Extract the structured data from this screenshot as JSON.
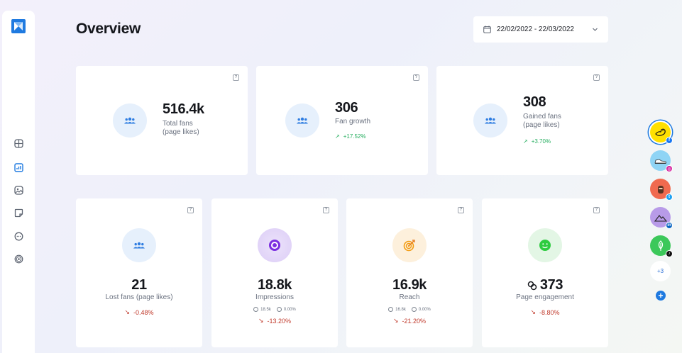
{
  "header": {
    "title": "Overview",
    "date_range": "22/02/2022 - 22/03/2022"
  },
  "sidebar": {
    "logo": "app-logo",
    "items": [
      {
        "icon": "layout-icon"
      },
      {
        "icon": "analytics-icon",
        "active": true
      },
      {
        "icon": "gallery-icon"
      },
      {
        "icon": "sticky-note-icon"
      },
      {
        "icon": "chat-icon"
      },
      {
        "icon": "target-icon"
      }
    ]
  },
  "cards_top": [
    {
      "value": "516.4k",
      "label": "Total fans\n(page likes)",
      "change": ""
    },
    {
      "value": "306",
      "label": "Fan growth",
      "change": "+17.52%"
    },
    {
      "value": "308",
      "label": "Gained fans\n(page likes)",
      "change": "+3.70%"
    }
  ],
  "cards_bottom": [
    {
      "value": "21",
      "label": "Lost fans (page likes)",
      "change": "-0.48%"
    },
    {
      "value": "18.8k",
      "label": "Impressions",
      "mini_a": "18.5k",
      "mini_b": "0.00%",
      "change": "-13.20%"
    },
    {
      "value": "16.9k",
      "label": "Reach",
      "mini_a": "16.8k",
      "mini_b": "0.00%",
      "change": "-21.20%"
    },
    {
      "value": "373",
      "label": "Page engagement",
      "change": "-8.80%"
    }
  ],
  "profiles": {
    "items": [
      {
        "name": "facebook-profile",
        "badge": "f",
        "badge_color": "#1877f2"
      },
      {
        "name": "instagram-profile",
        "badge": "◎",
        "badge_color": "#d6249f"
      },
      {
        "name": "twitter-profile",
        "badge": "t",
        "badge_color": "#1da1f2"
      },
      {
        "name": "linkedin-profile",
        "badge": "in",
        "badge_color": "#0a66c2"
      },
      {
        "name": "tiktok-profile",
        "badge": "♪",
        "badge_color": "#111111"
      }
    ],
    "more_label": "+3",
    "add_label": "+"
  },
  "colors": {
    "accent": "#1f7ae0",
    "positive": "#27ae60",
    "negative": "#c0392b"
  }
}
